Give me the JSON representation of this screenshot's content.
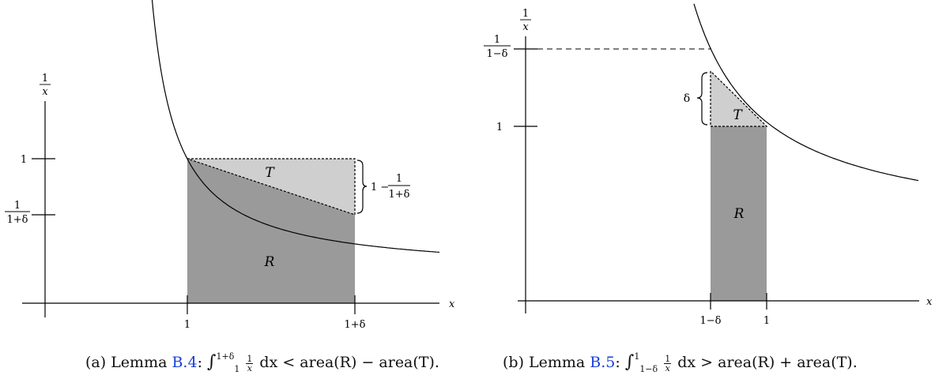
{
  "panel_a": {
    "y_axis_label_num": "1",
    "y_axis_label_den": "x",
    "x_axis_label": "x",
    "y_tick_one": "1",
    "y_tick_frac_num": "1",
    "y_tick_frac_den": "1+δ",
    "x_tick_left": "1",
    "x_tick_right": "1+δ",
    "region_T": "T",
    "region_R": "R",
    "brace_label_prefix": "1 −",
    "brace_label_num": "1",
    "brace_label_den": "1+δ",
    "caption": {
      "prefix": "(a) Lemma ",
      "ref": "B.4",
      "colon": ": ",
      "upper": "1+δ",
      "lower": "1",
      "integrand_num": "1",
      "integrand_den": "x",
      "suffix": " dx < area(R) − area(T)."
    }
  },
  "panel_b": {
    "y_axis_label_num": "1",
    "y_axis_label_den": "x",
    "x_axis_label": "x",
    "y_tick_frac_num": "1",
    "y_tick_frac_den": "1−δ",
    "y_tick_one": "1",
    "x_tick_left": "1−δ",
    "x_tick_right": "1",
    "brace_label": "δ",
    "region_T": "T",
    "region_R": "R",
    "caption": {
      "prefix": "(b) Lemma ",
      "ref": "B.5",
      "colon": ": ",
      "upper": "1",
      "lower": "1−δ",
      "integrand_num": "1",
      "integrand_den": "x",
      "suffix": " dx > area(R) + area(T)."
    }
  },
  "colors": {
    "dark_region": "#9a9a9a",
    "light_region": "#cfcfcf",
    "ink": "#000000",
    "link": "#1a3fd8"
  }
}
